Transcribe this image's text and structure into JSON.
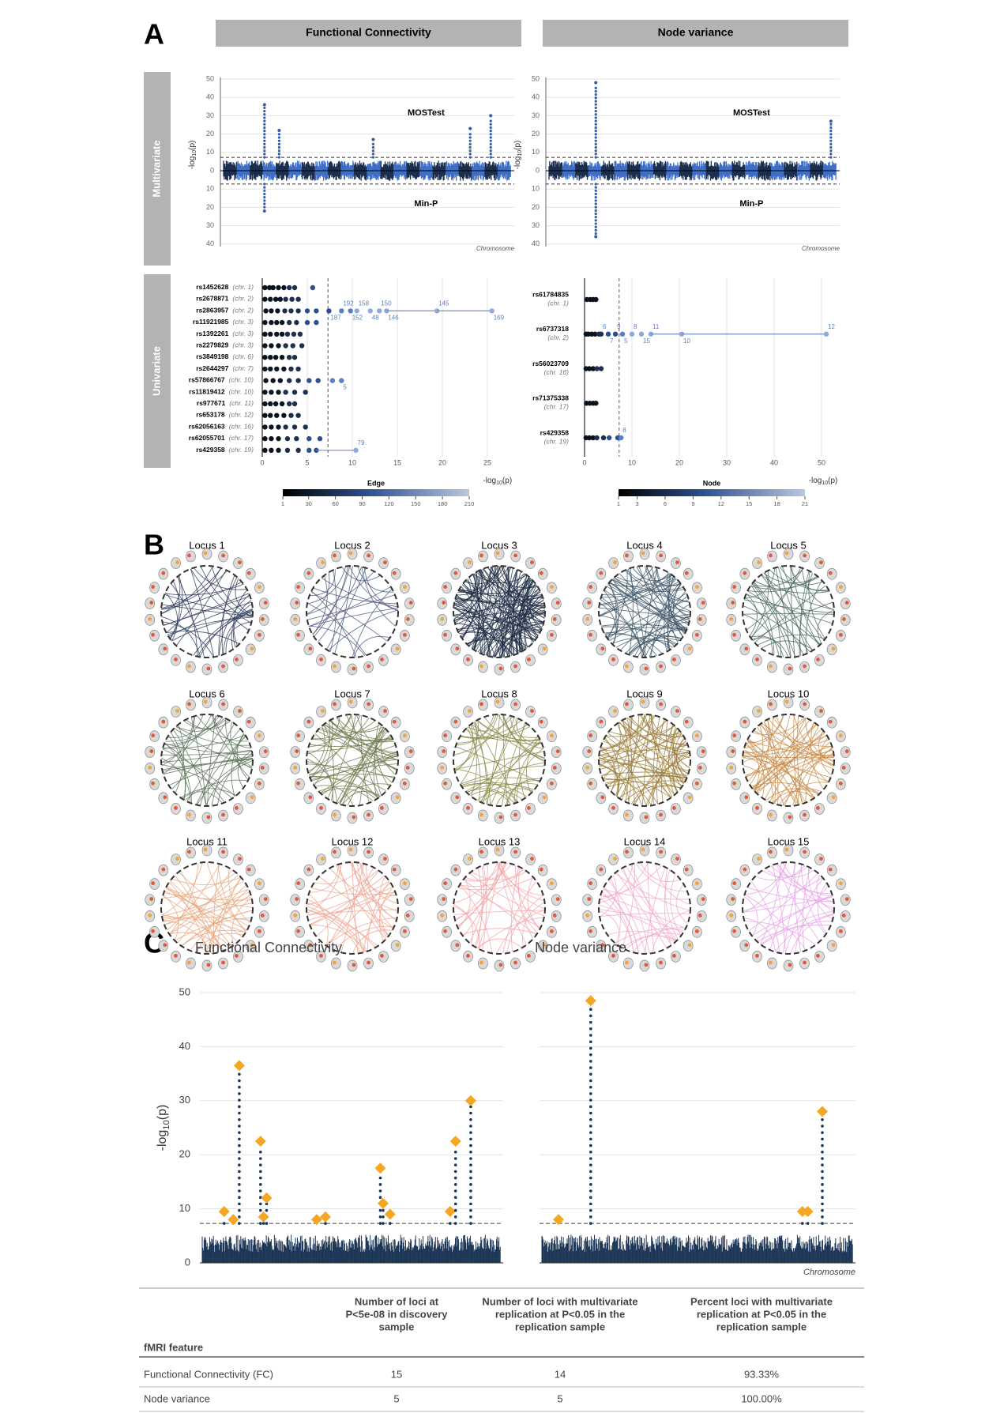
{
  "panel_labels": [
    "A",
    "B",
    "C"
  ],
  "log_p_label": {
    "prefix": "-log",
    "sub": "10",
    "suffix": "(p)"
  },
  "panel_a": {
    "column_headers": [
      "Functional Connectivity",
      "Node variance"
    ],
    "row_headers": [
      "Multivariate",
      "Univariate"
    ],
    "manhattan_plots": [
      {
        "upper_label": "MOSTest",
        "lower_label": "Min-P",
        "x_label": "Chromosome",
        "yticks_upper": [
          0,
          10,
          20,
          30,
          40,
          50
        ],
        "yticks_lower": [
          10,
          20,
          30,
          40
        ],
        "threshold": 7.3,
        "mostest": {
          "x": [
            15,
            20,
            52,
            85,
            92
          ],
          "values": [
            36,
            22,
            17,
            23,
            30
          ]
        },
        "minp": {
          "x": [
            15
          ],
          "values": [
            22
          ]
        }
      },
      {
        "upper_label": "MOSTest",
        "lower_label": "Min-P",
        "x_label": "Chromosome",
        "yticks_upper": [
          0,
          10,
          20,
          30,
          40,
          50
        ],
        "yticks_lower": [
          10,
          20,
          30,
          40
        ],
        "threshold": 7.3,
        "mostest": {
          "x": [
            17,
            97
          ],
          "values": [
            48,
            27
          ]
        },
        "minp": {
          "x": [
            17
          ],
          "values": [
            36
          ]
        }
      }
    ],
    "univariate_fc": {
      "xlim": [
        0,
        27
      ],
      "xticks": [
        0,
        5,
        10,
        15,
        20,
        25
      ],
      "threshold": 7.3,
      "colorbar": {
        "title": "Edge",
        "lim": [
          1,
          210
        ],
        "ticks": [
          1,
          30,
          60,
          90,
          120,
          150,
          180,
          210
        ]
      },
      "snps": [
        {
          "name": "rs1452628",
          "chr_label": "(chr. 1)",
          "values": [
            0.3,
            0.8,
            1.2,
            1.8,
            2.4,
            3,
            3.6,
            5.6
          ]
        },
        {
          "name": "rs2678871",
          "chr_label": "(chr. 2)",
          "values": [
            0.3,
            0.9,
            1.5,
            2,
            2.6,
            3.3,
            4
          ]
        },
        {
          "name": "rs2863957",
          "chr_label": "(chr. 2)",
          "values": [
            0.4,
            1,
            1.7,
            2.5,
            3.2,
            4,
            5,
            6,
            7.4,
            8.8,
            9.8,
            10.5,
            12,
            13,
            13.8,
            19.4,
            25.5
          ],
          "edges": [
            null,
            null,
            null,
            null,
            null,
            null,
            null,
            null,
            187,
            192,
            152,
            158,
            48,
            150,
            146,
            145,
            169
          ]
        },
        {
          "name": "rs11921985",
          "chr_label": "(chr. 3)",
          "values": [
            0.3,
            1,
            1.6,
            2.2,
            3,
            3.8,
            5,
            6
          ]
        },
        {
          "name": "rs1392261",
          "chr_label": "(chr. 3)",
          "values": [
            0.3,
            0.9,
            1.6,
            2.2,
            2.8,
            3.5,
            4.2
          ]
        },
        {
          "name": "rs2279829",
          "chr_label": "(chr. 3)",
          "values": [
            0.3,
            1,
            1.8,
            2.6,
            3.4,
            4.4
          ]
        },
        {
          "name": "rs3849198",
          "chr_label": "(chr. 6)",
          "values": [
            0.3,
            0.9,
            1.5,
            2.2,
            3,
            3.6
          ]
        },
        {
          "name": "rs2644297",
          "chr_label": "(chr. 7)",
          "values": [
            0.3,
            0.9,
            1.6,
            2.4,
            3.2,
            4
          ]
        },
        {
          "name": "rs57866767",
          "chr_label": "(chr. 10)",
          "values": [
            0.4,
            1.2,
            2,
            3,
            4,
            5.2,
            6.2,
            7.8,
            8.8
          ],
          "edges": [
            null,
            null,
            null,
            null,
            null,
            null,
            null,
            null,
            5
          ]
        },
        {
          "name": "rs11819412",
          "chr_label": "(chr. 10)",
          "values": [
            0.3,
            1,
            1.8,
            2.6,
            3.6,
            4.8
          ]
        },
        {
          "name": "rs977671",
          "chr_label": "(chr. 11)",
          "values": [
            0.3,
            0.9,
            1.5,
            2.2,
            3,
            3.6
          ]
        },
        {
          "name": "rs653178",
          "chr_label": "(chr. 12)",
          "values": [
            0.3,
            0.9,
            1.6,
            2.4,
            3.2,
            4
          ]
        },
        {
          "name": "rs62056163",
          "chr_label": "(chr. 16)",
          "values": [
            0.3,
            1,
            1.8,
            2.6,
            3.6,
            4.8
          ]
        },
        {
          "name": "rs62055701",
          "chr_label": "(chr. 17)",
          "values": [
            0.3,
            1,
            1.8,
            2.8,
            3.8,
            5.2,
            6.4
          ]
        },
        {
          "name": "rs429358",
          "chr_label": "(chr. 19)",
          "values": [
            0.3,
            1,
            1.8,
            2.8,
            4,
            5.2,
            6,
            10.4
          ],
          "edges": [
            null,
            null,
            null,
            null,
            null,
            null,
            null,
            79
          ]
        }
      ]
    },
    "univariate_node": {
      "xlim": [
        0,
        52
      ],
      "xticks": [
        0,
        10,
        20,
        30,
        40,
        50
      ],
      "threshold": 7.3,
      "colorbar": {
        "title": "Node",
        "lim": [
          1,
          21
        ],
        "ticks": [
          1,
          3,
          6,
          9,
          12,
          15,
          18,
          21
        ]
      },
      "snps": [
        {
          "name": "rs61784835",
          "chr_label": "(chr. 1)",
          "values": [
            0.5,
            1.2,
            1.8,
            2.4
          ]
        },
        {
          "name": "rs6737318",
          "chr_label": "(chr. 2)",
          "values": [
            0.3,
            0.8,
            1.5,
            2.2,
            3,
            3.5,
            5,
            6.5,
            8,
            10,
            12,
            14,
            20.5,
            51
          ],
          "edges": [
            null,
            null,
            null,
            null,
            null,
            6,
            7,
            9,
            5,
            8,
            15,
            11,
            10,
            12
          ]
        },
        {
          "name": "rs56023709",
          "chr_label": "(chr. 16)",
          "values": [
            0.3,
            1,
            1.8,
            2.6,
            3.5
          ]
        },
        {
          "name": "rs71375338",
          "chr_label": "(chr. 17)",
          "values": [
            0.4,
            1.1,
            1.8,
            2.4
          ]
        },
        {
          "name": "rs429358",
          "chr_label": "(chr. 19)",
          "values": [
            0.3,
            1,
            1.8,
            2.6,
            4,
            5.2,
            7,
            7.7
          ],
          "edges": [
            null,
            null,
            null,
            null,
            null,
            null,
            null,
            8
          ]
        }
      ]
    }
  },
  "panel_b": {
    "loci": [
      {
        "label": "Locus 1",
        "color": "#2b3a5a"
      },
      {
        "label": "Locus 2",
        "color": "#46567a"
      },
      {
        "label": "Locus 3",
        "color": "#1f2e45"
      },
      {
        "label": "Locus 4",
        "color": "#3d5566"
      },
      {
        "label": "Locus 5",
        "color": "#4a6660"
      },
      {
        "label": "Locus 6",
        "color": "#5a7356"
      },
      {
        "label": "Locus 7",
        "color": "#6e7a4e"
      },
      {
        "label": "Locus 8",
        "color": "#8a8a4a"
      },
      {
        "label": "Locus 9",
        "color": "#9a7d3a"
      },
      {
        "label": "Locus 10",
        "color": "#c88c4a"
      },
      {
        "label": "Locus 11",
        "color": "#e6a87f"
      },
      {
        "label": "Locus 12",
        "color": "#eea290"
      },
      {
        "label": "Locus 13",
        "color": "#f2a5a8"
      },
      {
        "label": "Locus 14",
        "color": "#f0a8c8"
      },
      {
        "label": "Locus 15",
        "color": "#e6a0e6"
      }
    ]
  },
  "panel_c": {
    "ylim": [
      0,
      50
    ],
    "yticks": [
      0,
      10,
      20,
      30,
      40,
      50
    ],
    "threshold": 7.3,
    "x_label": "Chromosome",
    "plots": [
      {
        "title": "Functional Connectivity",
        "xlim": [
          0,
          100
        ],
        "x": [
          8,
          11,
          13,
          20,
          22,
          21,
          38.5,
          41.4,
          59.5,
          60.4,
          62.7,
          82.5,
          84.3,
          89.3
        ],
        "values": [
          9.5,
          8,
          36.5,
          22.5,
          12,
          8.5,
          8,
          8.5,
          17.5,
          11,
          9,
          9.5,
          22.5,
          30
        ]
      },
      {
        "title": "Node variance",
        "xlim": [
          0,
          100
        ],
        "x": [
          6,
          16.2,
          83.2,
          84.9,
          89.5
        ],
        "values": [
          8,
          48.5,
          9.5,
          9.5,
          28
        ]
      }
    ]
  },
  "table": {
    "header": [
      [
        "fMRI feature"
      ],
      [
        "Number of loci at",
        "P<5e-08 in discovery",
        "sample"
      ],
      [
        "Number of loci with multivariate",
        "replication at P<0.05 in the",
        "replication sample"
      ],
      [
        "Percent loci with multivariate",
        "replication at P<0.05 in the",
        "replication sample"
      ]
    ],
    "rows": [
      [
        "Functional Connectivity (FC)",
        "15",
        "14",
        "93.33%"
      ],
      [
        "Node variance",
        "5",
        "5",
        "100.00%"
      ]
    ]
  }
}
